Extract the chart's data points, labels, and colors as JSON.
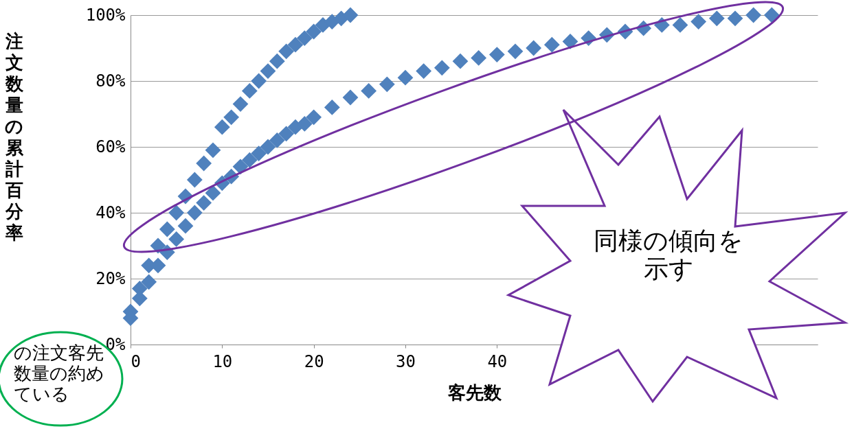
{
  "chart_data": {
    "type": "scatter",
    "xlabel": "客先数",
    "ylabel": "注文数量の累計百分率",
    "xlim": [
      0,
      75
    ],
    "xticks": [
      0,
      10,
      20,
      30,
      40
    ],
    "ylim": [
      0,
      1
    ],
    "yticks": [
      {
        "value": 0,
        "label": "0%"
      },
      {
        "value": 0.2,
        "label": "20%"
      },
      {
        "value": 0.4,
        "label": "40%"
      },
      {
        "value": 0.6,
        "label": "60%"
      },
      {
        "value": 0.8,
        "label": "80%"
      },
      {
        "value": 1,
        "label": "100%"
      }
    ],
    "grid": "y",
    "marker": "diamond",
    "series": [
      {
        "color": "#4f81bd",
        "x": [
          0,
          1,
          2,
          3,
          4,
          5,
          6,
          7,
          8,
          9,
          10,
          11,
          12,
          13,
          14,
          15,
          16,
          17,
          18,
          19,
          20,
          21,
          22,
          23,
          24
        ],
        "values": [
          0.1,
          0.17,
          0.24,
          0.3,
          0.35,
          0.4,
          0.45,
          0.5,
          0.55,
          0.59,
          0.66,
          0.69,
          0.73,
          0.77,
          0.8,
          0.83,
          0.86,
          0.89,
          0.91,
          0.93,
          0.95,
          0.97,
          0.98,
          0.99,
          1.0
        ]
      },
      {
        "color": "#4f81bd",
        "x": [
          0,
          1,
          2,
          3,
          4,
          5,
          6,
          7,
          8,
          9,
          10,
          11,
          12,
          13,
          14,
          15,
          16,
          17,
          18,
          19,
          20,
          22,
          24,
          26,
          28,
          30,
          32,
          34,
          36,
          38,
          40,
          42,
          44,
          46,
          48,
          50,
          52,
          54,
          56,
          58,
          60,
          62,
          64,
          66,
          68,
          70
        ],
        "values": [
          0.08,
          0.14,
          0.19,
          0.24,
          0.28,
          0.32,
          0.36,
          0.4,
          0.43,
          0.46,
          0.49,
          0.51,
          0.54,
          0.56,
          0.58,
          0.6,
          0.62,
          0.64,
          0.66,
          0.67,
          0.69,
          0.72,
          0.75,
          0.77,
          0.79,
          0.81,
          0.83,
          0.84,
          0.86,
          0.87,
          0.88,
          0.89,
          0.9,
          0.91,
          0.92,
          0.93,
          0.94,
          0.95,
          0.96,
          0.97,
          0.97,
          0.98,
          0.99,
          0.99,
          1.0,
          1.0
        ]
      }
    ],
    "annotations": [
      "同様の傾向を示す",
      "の注文客先数量の約めている"
    ]
  }
}
